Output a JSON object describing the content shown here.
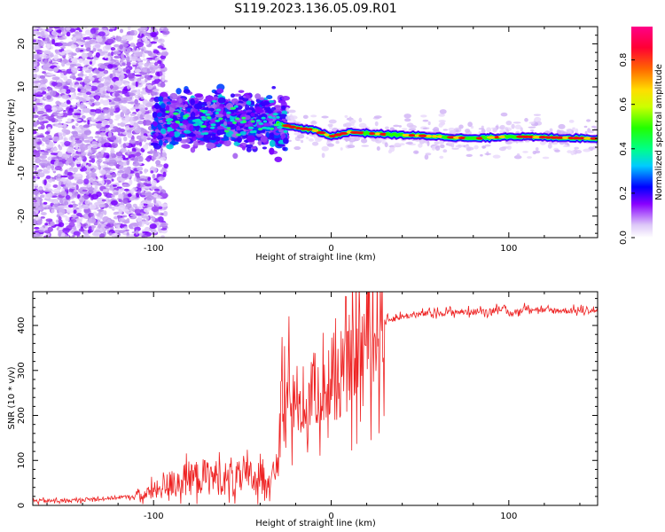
{
  "figure": {
    "title": "S119.2023.136.05.09.R01"
  },
  "chart_data": [
    {
      "type": "heatmap",
      "xlabel": "Height of straight line (km)",
      "ylabel": "Frequency (Hz)",
      "xlim": [
        -168,
        150
      ],
      "ylim": [
        -25,
        24
      ],
      "x_ticks": [
        -100,
        0,
        100
      ],
      "y_ticks": [
        -20,
        -10,
        0,
        10,
        20
      ],
      "colorbar": {
        "label": "Normalized spectral amplitude",
        "range": [
          0,
          0.95
        ],
        "ticks": [
          0.0,
          0.2,
          0.4,
          0.6,
          0.8
        ]
      },
      "ridge": [
        {
          "x": -100,
          "y": 2
        },
        {
          "x": -60,
          "y": 2.5
        },
        {
          "x": -40,
          "y": 2
        },
        {
          "x": -30,
          "y": 1.5
        },
        {
          "x": -20,
          "y": 0.5
        },
        {
          "x": -10,
          "y": 0
        },
        {
          "x": 0,
          "y": -1.5
        },
        {
          "x": 10,
          "y": -0.5
        },
        {
          "x": 30,
          "y": -1
        },
        {
          "x": 60,
          "y": -1.5
        },
        {
          "x": 80,
          "y": -2
        },
        {
          "x": 100,
          "y": -1.5
        },
        {
          "x": 150,
          "y": -2
        }
      ]
    },
    {
      "type": "line",
      "xlabel": "Height of straight line (km)",
      "ylabel": "SNR (10 * v/v)",
      "xlim": [
        -168,
        150
      ],
      "ylim": [
        0,
        475
      ],
      "x_ticks": [
        -100,
        0,
        100
      ],
      "y_ticks": [
        0,
        100,
        200,
        300,
        400
      ],
      "series": [
        {
          "color": "#ee2222",
          "x": [
            -168,
            -150,
            -130,
            -110,
            -100,
            -90,
            -80,
            -70,
            -60,
            -50,
            -40,
            -35,
            -30,
            -28,
            -26,
            -24,
            -22,
            -20,
            -18,
            -15,
            -12,
            -10,
            -5,
            0,
            5,
            10,
            15,
            20,
            25,
            30,
            40,
            50,
            60,
            70,
            80,
            90,
            95,
            100,
            105,
            110,
            120,
            130,
            140,
            150
          ],
          "y": [
            10,
            10,
            15,
            20,
            30,
            50,
            60,
            65,
            60,
            60,
            65,
            60,
            80,
            250,
            140,
            300,
            200,
            280,
            220,
            200,
            240,
            260,
            250,
            260,
            280,
            300,
            340,
            370,
            390,
            410,
            420,
            425,
            428,
            430,
            430,
            432,
            440,
            425,
            430,
            440,
            433,
            433,
            433,
            433
          ]
        }
      ]
    }
  ]
}
